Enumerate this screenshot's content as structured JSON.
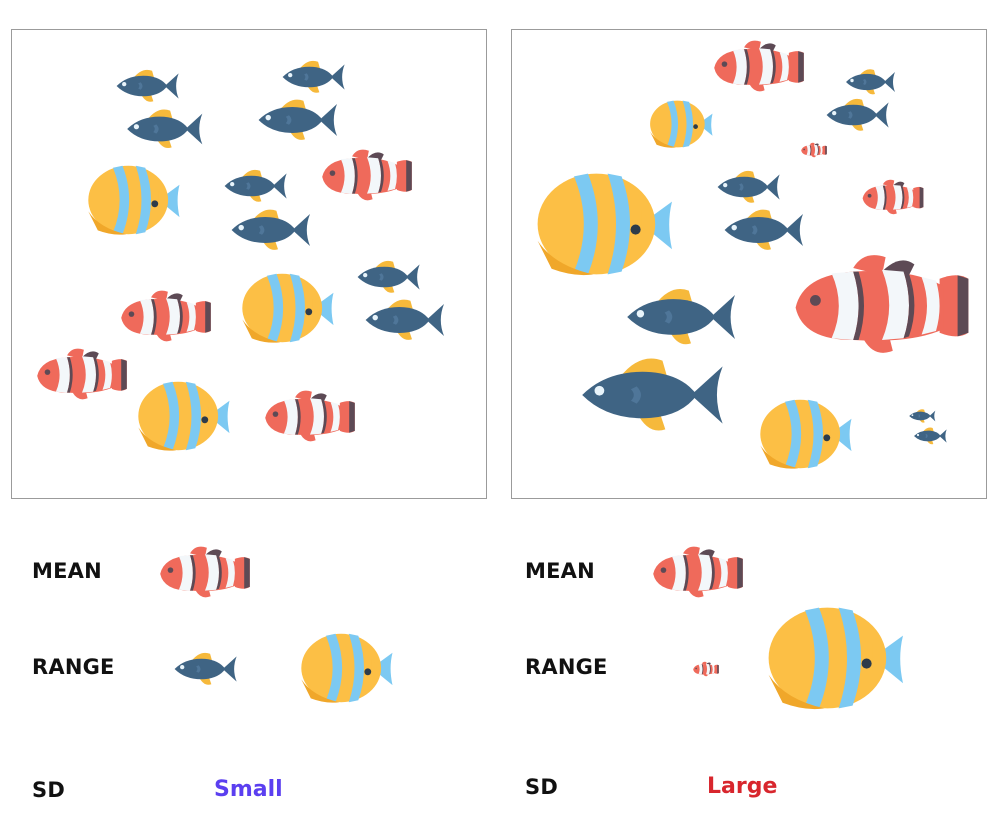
{
  "panels": [
    {
      "id": "left",
      "labels": {
        "mean": "MEAN",
        "range": "RANGE",
        "sd": "SD"
      },
      "sd_value": "Small",
      "sd_color": "#5b3ff0",
      "mean_icon": "clownfish-icon",
      "range_icons": [
        "blue-fish-icon",
        "butterflyfish-icon"
      ]
    },
    {
      "id": "right",
      "labels": {
        "mean": "MEAN",
        "range": "RANGE",
        "sd": "SD"
      },
      "sd_value": "Large",
      "sd_color": "#d8262d",
      "mean_icon": "clownfish-icon",
      "range_icons": [
        "clownfish-icon",
        "butterflyfish-icon"
      ]
    }
  ],
  "colors": {
    "blue_fish": "#3f6484",
    "fin_yellow": "#f6b93b",
    "clown_orange": "#ef6a5b",
    "clown_white": "#f3f7fa",
    "clown_edge": "#5d4a55",
    "butterfly_yellow": "#fcbf45",
    "butterfly_blue": "#7cc9f2"
  }
}
